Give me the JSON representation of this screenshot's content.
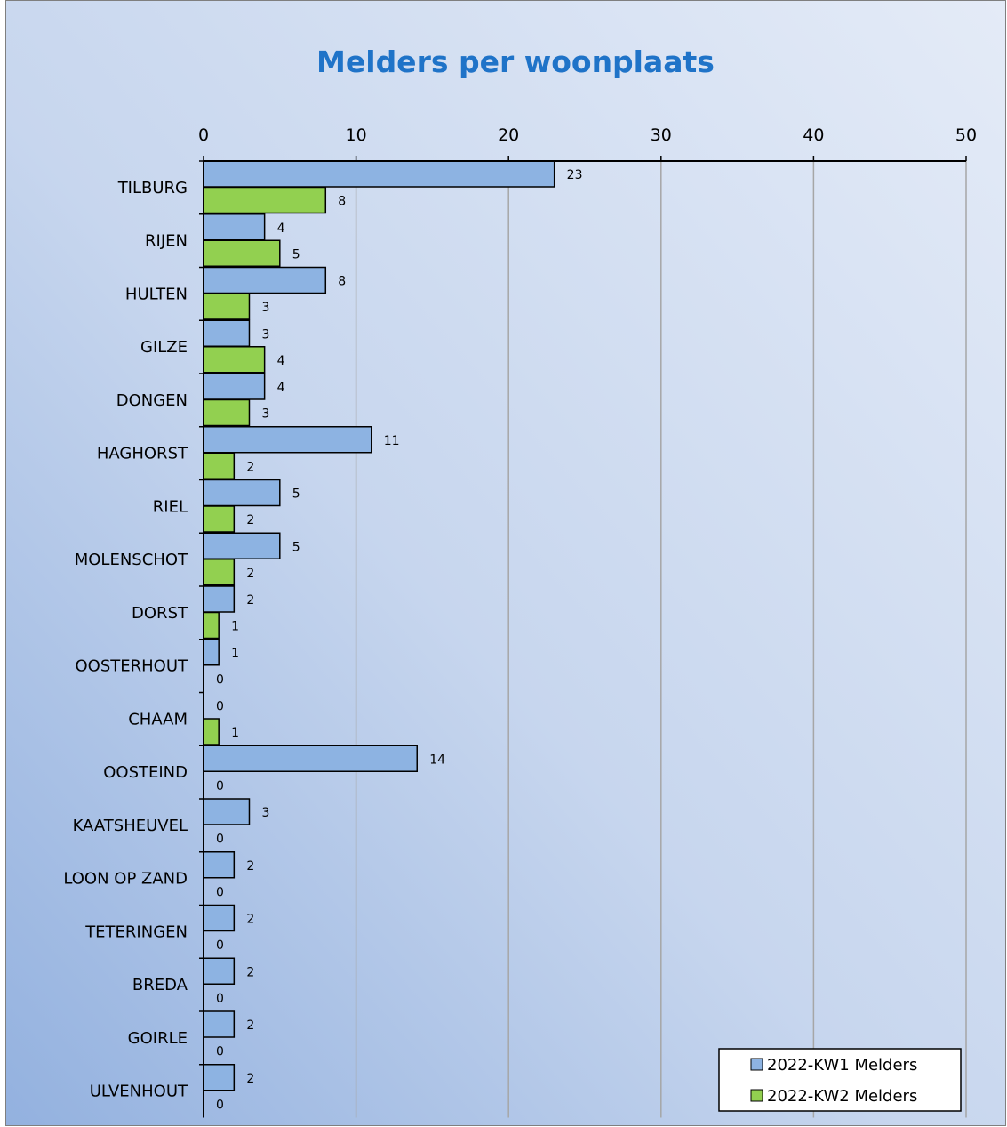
{
  "chart_data": {
    "type": "bar",
    "orientation": "horizontal",
    "title": "Melders per woonplaats",
    "xlabel": "",
    "ylabel": "",
    "xlim": [
      0,
      50
    ],
    "x_ticks": [
      0,
      10,
      20,
      30,
      40,
      50
    ],
    "x_axis_position": "top",
    "grid": "vertical",
    "legend_position": "bottom-right",
    "categories": [
      "TILBURG",
      "RIJEN",
      "HULTEN",
      "GILZE",
      "DONGEN",
      "HAGHORST",
      "RIEL",
      "MOLENSCHOT",
      "DORST",
      "OOSTERHOUT",
      "CHAAM",
      "OOSTEIND",
      "KAATSHEUVEL",
      "LOON OP ZAND",
      "TETERINGEN",
      "BREDA",
      "GOIRLE",
      "ULVENHOUT"
    ],
    "series": [
      {
        "name": "2022-KW1 Melders",
        "color": "#8db3e2",
        "values": [
          23,
          4,
          8,
          3,
          4,
          11,
          5,
          5,
          2,
          1,
          0,
          14,
          3,
          2,
          2,
          2,
          2,
          2
        ]
      },
      {
        "name": "2022-KW2 Melders",
        "color": "#92d050",
        "values": [
          8,
          5,
          3,
          4,
          3,
          2,
          2,
          2,
          1,
          0,
          1,
          0,
          0,
          0,
          0,
          0,
          0,
          0
        ]
      }
    ],
    "data_labels": true
  }
}
